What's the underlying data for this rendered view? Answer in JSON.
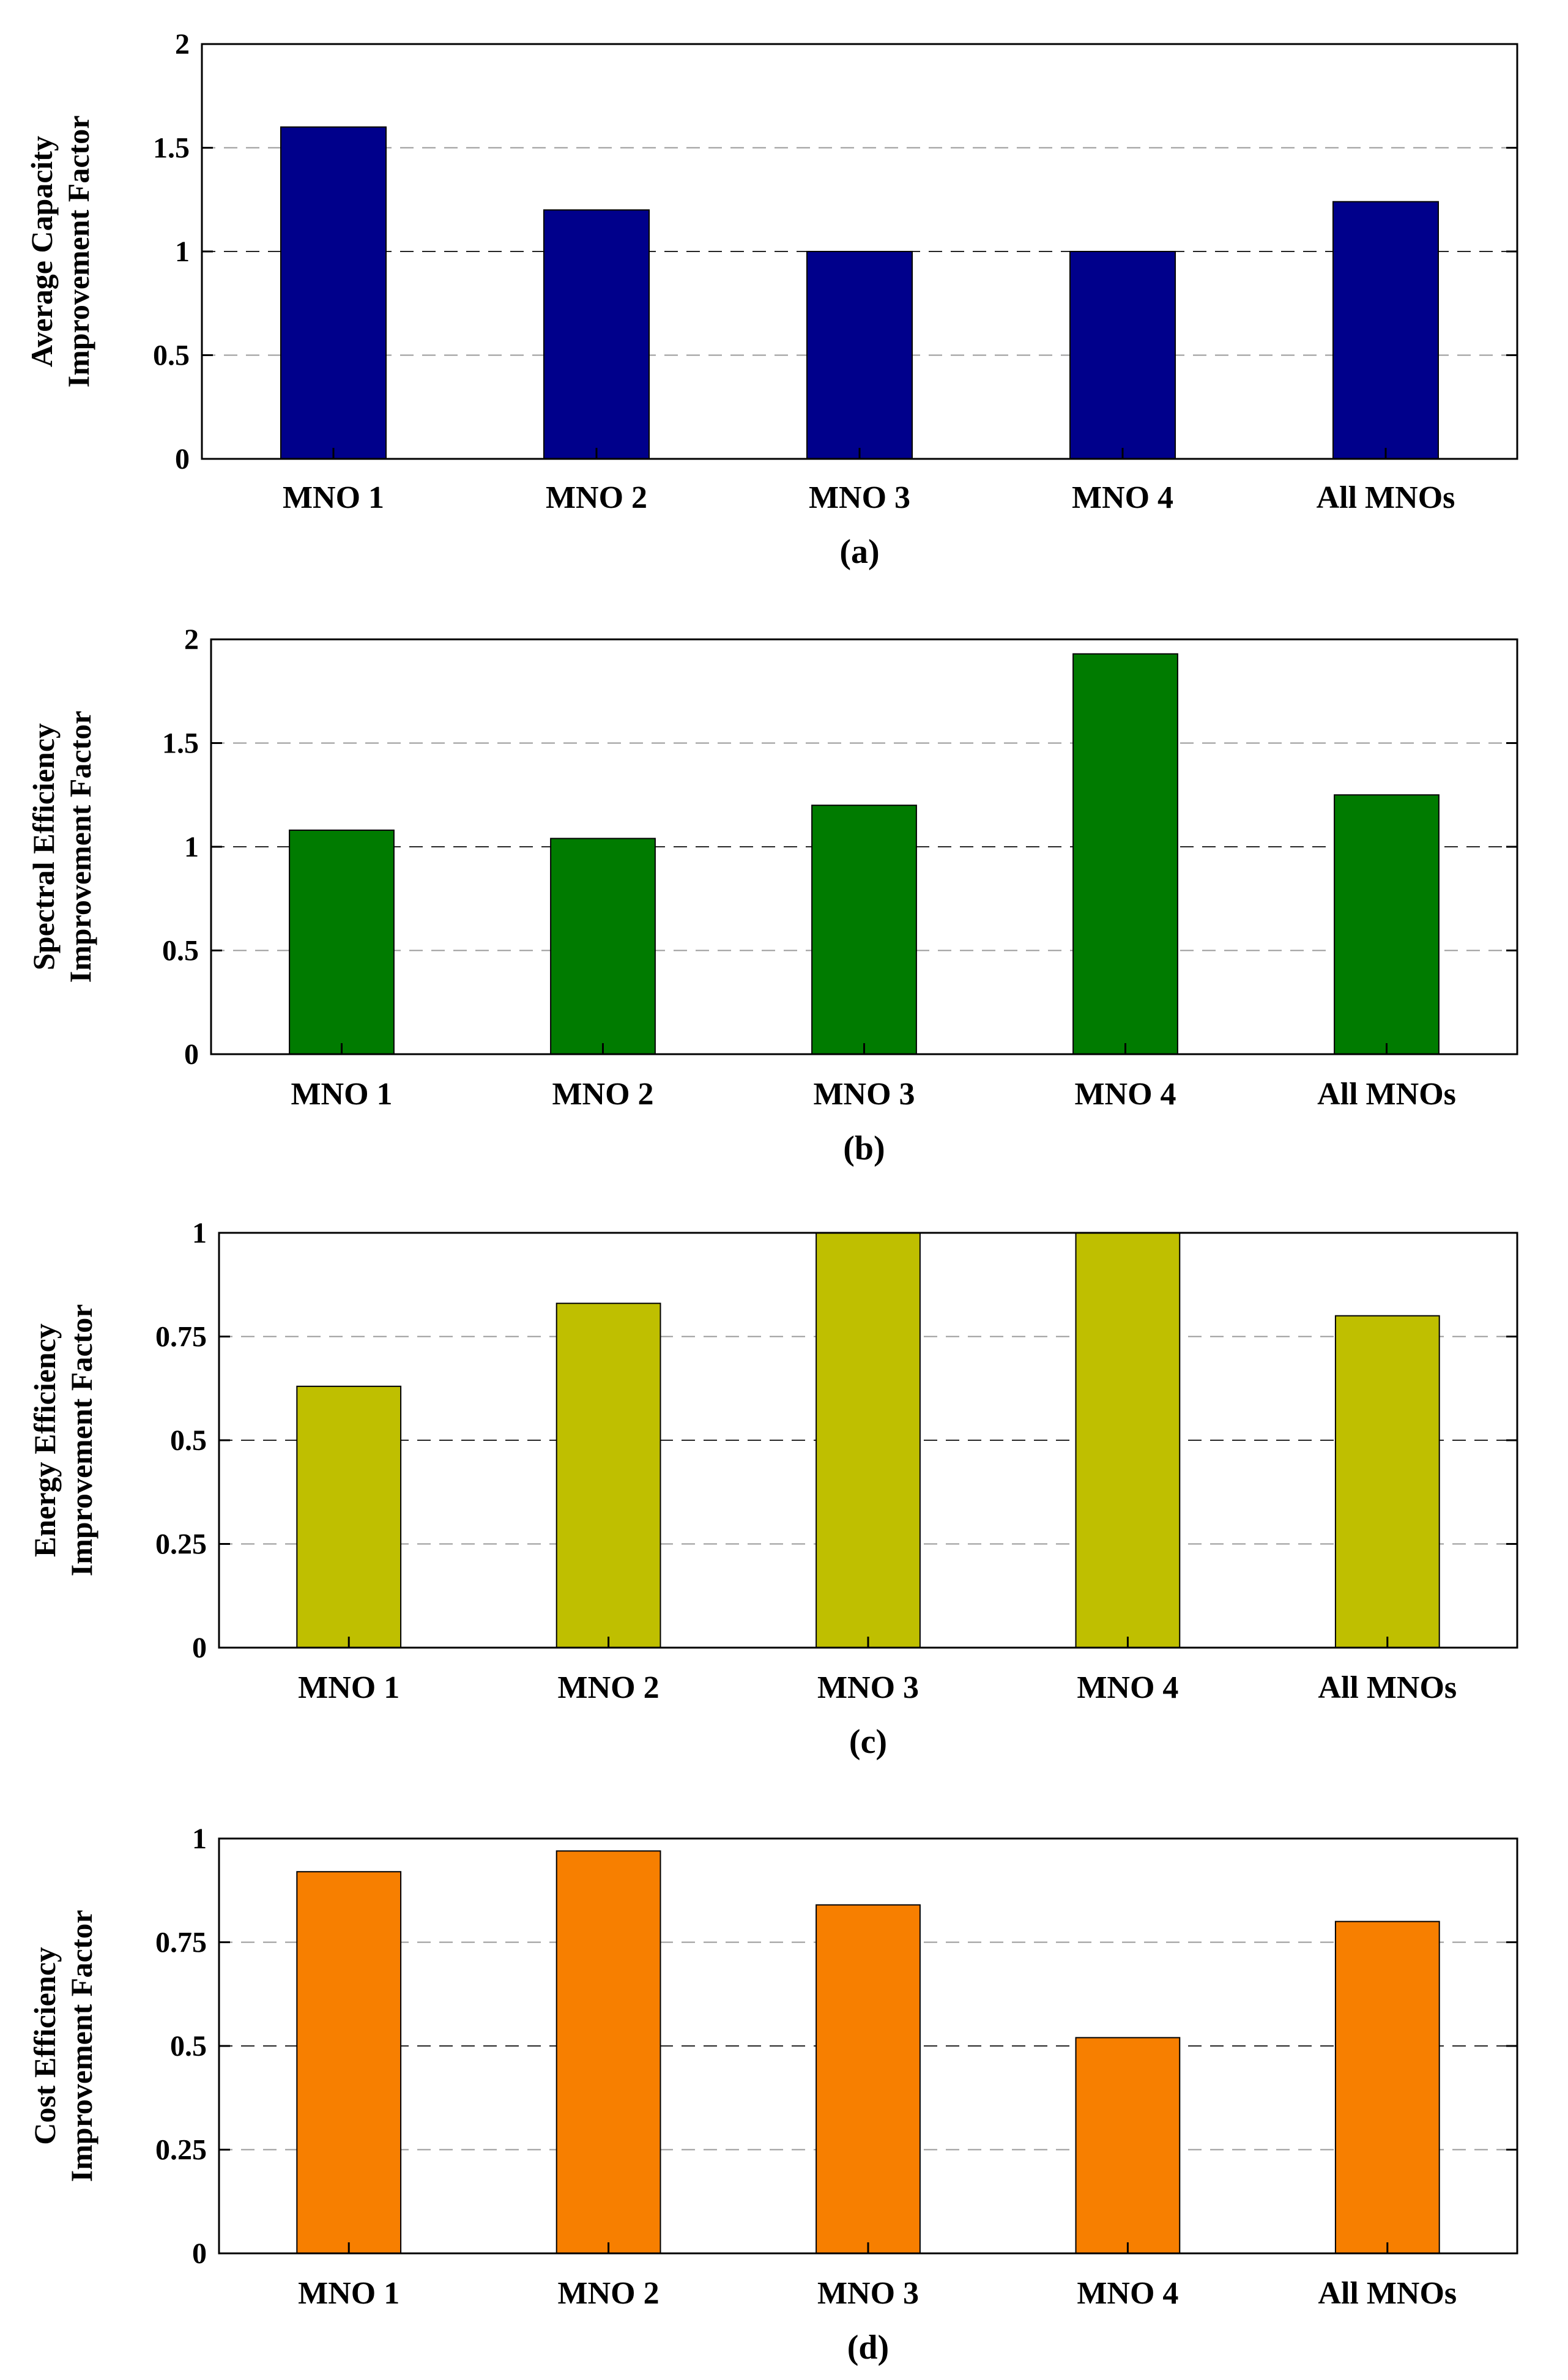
{
  "chart_data": [
    {
      "type": "bar",
      "caption": "(a)",
      "ylabel": [
        "Average Capacity",
        "Improvement Factor"
      ],
      "categories": [
        "MNO 1",
        "MNO 2",
        "MNO 3",
        "MNO 4",
        "All MNOs"
      ],
      "values": [
        1.6,
        1.2,
        1.0,
        1.0,
        1.24
      ],
      "ylim": [
        0,
        2
      ],
      "yticks": [
        0,
        0.5,
        1,
        1.5,
        2
      ],
      "ytick_labels": [
        "0",
        "0.5",
        "1",
        "1.5",
        "2"
      ],
      "color": "#00008b",
      "grid": "dashed horizontal"
    },
    {
      "type": "bar",
      "caption": "(b)",
      "ylabel": [
        "Spectral Efficiency",
        "Improvement Factor"
      ],
      "categories": [
        "MNO 1",
        "MNO 2",
        "MNO 3",
        "MNO 4",
        "All MNOs"
      ],
      "values": [
        1.08,
        1.04,
        1.2,
        1.93,
        1.25
      ],
      "ylim": [
        0,
        2
      ],
      "yticks": [
        0,
        0.5,
        1,
        1.5,
        2
      ],
      "ytick_labels": [
        "0",
        "0.5",
        "1",
        "1.5",
        "2"
      ],
      "color": "#007b00",
      "grid": "dashed horizontal"
    },
    {
      "type": "bar",
      "caption": "(c)",
      "ylabel": [
        "Energy Efficiency",
        "Improvement Factor"
      ],
      "categories": [
        "MNO 1",
        "MNO 2",
        "MNO 3",
        "MNO 4",
        "All MNOs"
      ],
      "values": [
        0.63,
        0.83,
        1.0,
        1.0,
        0.8
      ],
      "ylim": [
        0,
        1
      ],
      "yticks": [
        0,
        0.25,
        0.5,
        0.75,
        1
      ],
      "ytick_labels": [
        "0",
        "0.25",
        "0.5",
        "0.75",
        "1"
      ],
      "color": "#bfbf00",
      "grid": "dashed horizontal"
    },
    {
      "type": "bar",
      "caption": "(d)",
      "ylabel": [
        "Cost Efficiency",
        "Improvement Factor"
      ],
      "categories": [
        "MNO 1",
        "MNO 2",
        "MNO 3",
        "MNO 4",
        "All MNOs"
      ],
      "values": [
        0.92,
        0.97,
        0.84,
        0.52,
        0.8
      ],
      "ylim": [
        0,
        1
      ],
      "yticks": [
        0,
        0.25,
        0.5,
        0.75,
        1
      ],
      "ytick_labels": [
        "0",
        "0.25",
        "0.5",
        "0.75",
        "1"
      ],
      "color": "#f77f00",
      "grid": "dashed horizontal"
    }
  ]
}
